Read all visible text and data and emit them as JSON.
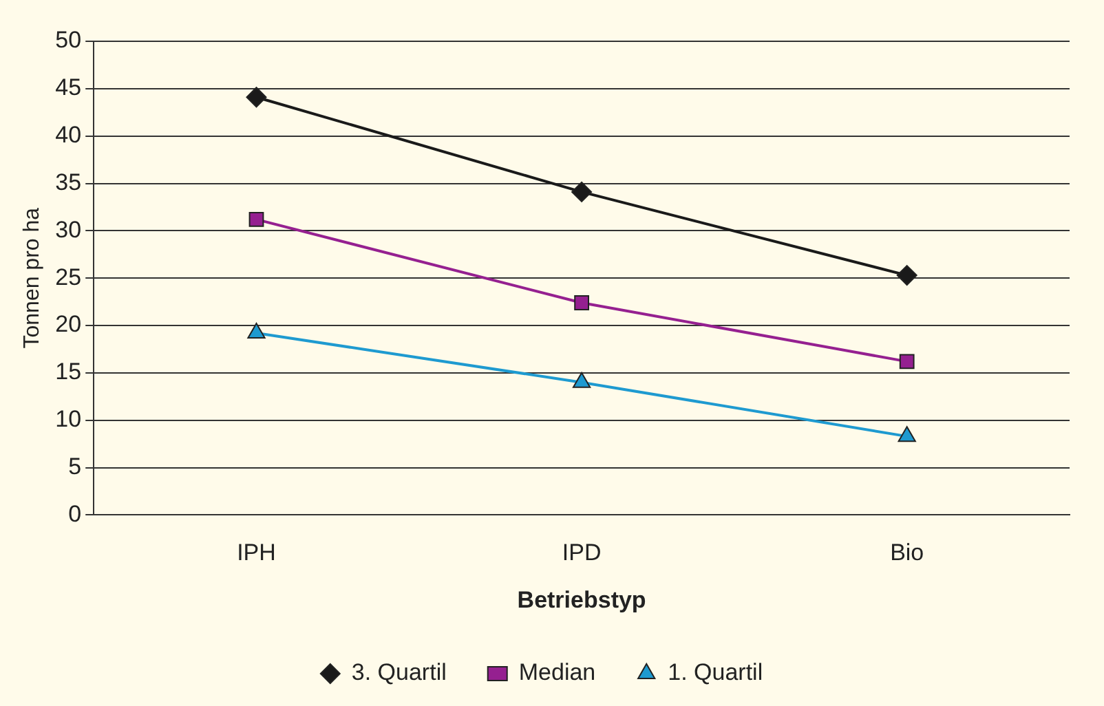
{
  "chart_data": {
    "type": "line",
    "xlabel": "Betriebstyp",
    "ylabel": "Tonnen pro ha",
    "categories": [
      "IPH",
      "IPD",
      "Bio"
    ],
    "series": [
      {
        "name": "3. Quartil",
        "color": "#1a1a1a",
        "marker": "diamond",
        "values": [
          44.1,
          34.1,
          25.3
        ]
      },
      {
        "name": "Median",
        "color": "#952090",
        "marker": "square",
        "values": [
          31.2,
          22.4,
          16.2
        ]
      },
      {
        "name": "1. Quartil",
        "color": "#1e9ad0",
        "marker": "triangle",
        "values": [
          19.2,
          14.0,
          8.3
        ]
      }
    ],
    "ylim": [
      0,
      50
    ],
    "yticks": [
      0,
      5,
      10,
      15,
      20,
      25,
      30,
      35,
      40,
      45,
      50
    ],
    "grid": "y",
    "legend": "bottom",
    "line_style": "solid"
  }
}
